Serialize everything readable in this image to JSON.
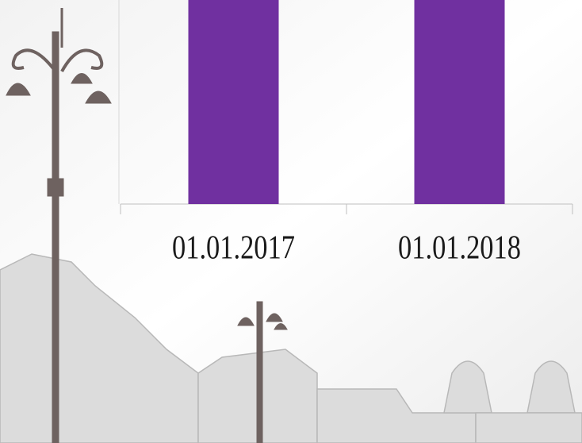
{
  "chart_data": {
    "type": "bar",
    "categories": [
      "01.01.2017",
      "01.01.2018"
    ],
    "values": [
      100,
      100
    ],
    "color": "#7030a0",
    "ylim": [
      0,
      100
    ]
  }
}
